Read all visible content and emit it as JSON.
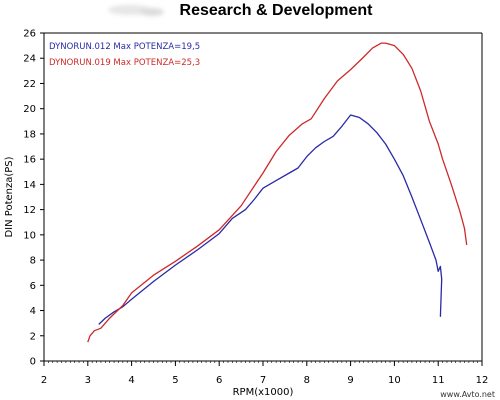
{
  "chart_data": {
    "type": "line",
    "title": "Research & Development",
    "xlabel": "RPM(x1000)",
    "ylabel": "DIN Potenza(PS)",
    "xlim": [
      2,
      12
    ],
    "ylim": [
      0,
      26
    ],
    "xticks": [
      "2",
      "3",
      "4",
      "5",
      "6",
      "7",
      "8",
      "9",
      "10",
      "11",
      "12"
    ],
    "yticks": [
      "0",
      "2",
      "4",
      "6",
      "8",
      "10",
      "12",
      "14",
      "16",
      "18",
      "20",
      "22",
      "24",
      "26"
    ],
    "grid": false,
    "legend_position": "top-left",
    "series": [
      {
        "name": "DYNORUN.012  Max POTENZA=19,5",
        "color": "#2a2aa8",
        "x": [
          3.25,
          3.4,
          3.6,
          3.8,
          4.0,
          4.5,
          5.0,
          5.5,
          6.0,
          6.3,
          6.6,
          6.8,
          7.0,
          7.3,
          7.6,
          7.8,
          8.0,
          8.2,
          8.4,
          8.6,
          8.8,
          9.0,
          9.2,
          9.4,
          9.6,
          9.8,
          10.0,
          10.2,
          10.4,
          10.6,
          10.8,
          10.95,
          11.0,
          11.05,
          11.08,
          11.05
        ],
        "y": [
          2.9,
          3.4,
          3.9,
          4.3,
          4.9,
          6.3,
          7.6,
          8.8,
          10.1,
          11.3,
          12.0,
          12.8,
          13.7,
          14.3,
          14.9,
          15.3,
          16.2,
          16.9,
          17.4,
          17.8,
          18.6,
          19.5,
          19.3,
          18.8,
          18.1,
          17.2,
          16.0,
          14.7,
          13.0,
          11.2,
          9.4,
          8.0,
          7.1,
          7.5,
          6.5,
          3.5
        ]
      },
      {
        "name": "DYNORUN.019  Max POTENZA=25,3",
        "color": "#cc2a2a",
        "x": [
          3.0,
          3.05,
          3.15,
          3.3,
          3.5,
          3.8,
          4.0,
          4.5,
          5.0,
          5.5,
          6.0,
          6.5,
          7.0,
          7.3,
          7.6,
          7.9,
          8.1,
          8.4,
          8.7,
          9.0,
          9.3,
          9.5,
          9.7,
          9.8,
          10.0,
          10.2,
          10.4,
          10.6,
          10.8,
          11.0,
          11.1,
          11.3,
          11.5,
          11.6,
          11.65
        ],
        "y": [
          1.5,
          2.0,
          2.4,
          2.6,
          3.4,
          4.4,
          5.4,
          6.8,
          7.9,
          9.1,
          10.4,
          12.3,
          14.9,
          16.6,
          17.9,
          18.8,
          19.2,
          20.8,
          22.2,
          23.1,
          24.1,
          24.8,
          25.2,
          25.2,
          25.0,
          24.3,
          23.2,
          21.4,
          19.0,
          17.2,
          16.0,
          14.0,
          11.8,
          10.5,
          9.2
        ]
      }
    ]
  },
  "credit": "www.Avto.net"
}
